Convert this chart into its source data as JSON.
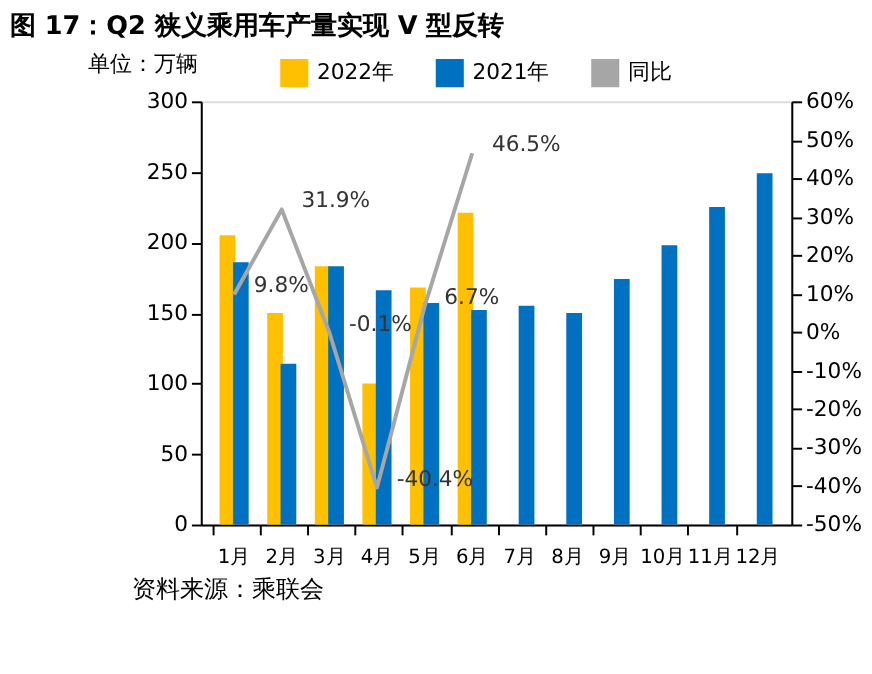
{
  "chart_data": {
    "type": "bar",
    "title": "图 17：Q2 狭义乘用车产量实现 V 型反转",
    "ylabel": "单位：万辆",
    "categories": [
      "1月",
      "2月",
      "3月",
      "4月",
      "5月",
      "6月",
      "7月",
      "8月",
      "9月",
      "10月",
      "11月",
      "12月"
    ],
    "series": [
      {
        "name": "2022年",
        "color": "#ffc000",
        "values": [
          205,
          150,
          183,
          100,
          168,
          221,
          null,
          null,
          null,
          null,
          null,
          null
        ]
      },
      {
        "name": "2021年",
        "color": "#0070c0",
        "values": [
          186,
          114,
          183,
          166,
          157,
          152,
          155,
          150,
          174,
          198,
          225,
          249
        ]
      },
      {
        "name": "同比",
        "type": "line",
        "axis": "y2",
        "color": "#a6a6a6",
        "values": [
          9.8,
          31.9,
          -0.1,
          -40.4,
          6.7,
          46.5,
          null,
          null,
          null,
          null,
          null,
          null
        ],
        "value_labels": [
          "9.8%",
          "31.9%",
          "-0.1%",
          "-40.4%",
          "6.7%",
          "46.5%",
          null,
          null,
          null,
          null,
          null,
          null
        ]
      }
    ],
    "ylim": [
      0,
      300
    ],
    "yticks": [
      0,
      50,
      100,
      150,
      200,
      250,
      300
    ],
    "y2lim": [
      -50,
      60
    ],
    "y2ticks": [
      {
        "value": -50,
        "label": "-50%"
      },
      {
        "value": -40,
        "label": "-40%"
      },
      {
        "value": -30,
        "label": "-30%"
      },
      {
        "value": -20,
        "label": "-20%"
      },
      {
        "value": -10,
        "label": "-10%"
      },
      {
        "value": 0,
        "label": "0%"
      },
      {
        "value": 10,
        "label": "10%"
      },
      {
        "value": 20,
        "label": "20%"
      },
      {
        "value": 30,
        "label": "30%"
      },
      {
        "value": 40,
        "label": "40%"
      },
      {
        "value": 50,
        "label": "50%"
      },
      {
        "value": 60,
        "label": "60%"
      }
    ],
    "legend": "top",
    "grid": false,
    "annotations": [
      "资料来源：乘联会"
    ]
  }
}
